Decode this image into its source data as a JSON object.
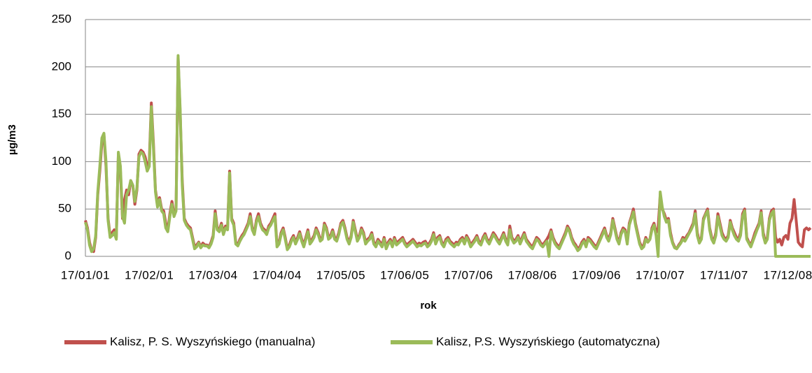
{
  "chart_data": {
    "type": "line",
    "y_label": "µg/m3",
    "x_label": "rok",
    "categories": [
      "17/01/01",
      null,
      null,
      null,
      null,
      null,
      null,
      null,
      null,
      null,
      null,
      null,
      null,
      null,
      null,
      null,
      null,
      null,
      null,
      null,
      null,
      null,
      null,
      null,
      null,
      null,
      null,
      null,
      null,
      null,
      null,
      "17/02/01",
      null,
      null,
      null,
      null,
      null,
      null,
      null,
      null,
      null,
      null,
      null,
      null,
      null,
      null,
      null,
      null,
      null,
      null,
      null,
      null,
      null,
      null,
      null,
      null,
      null,
      null,
      null,
      null,
      null,
      null,
      "17/03/04",
      null,
      null,
      null,
      null,
      null,
      null,
      null,
      null,
      null,
      null,
      null,
      null,
      null,
      null,
      null,
      null,
      null,
      null,
      null,
      null,
      null,
      null,
      null,
      null,
      null,
      null,
      null,
      null,
      null,
      null,
      "17/04/04",
      null,
      null,
      null,
      null,
      null,
      null,
      null,
      null,
      null,
      null,
      null,
      null,
      null,
      null,
      null,
      null,
      null,
      null,
      null,
      null,
      null,
      null,
      null,
      null,
      null,
      null,
      null,
      null,
      null,
      null,
      "17/05/05",
      null,
      null,
      null,
      null,
      null,
      null,
      null,
      null,
      null,
      null,
      null,
      null,
      null,
      null,
      null,
      null,
      null,
      null,
      null,
      null,
      null,
      null,
      null,
      null,
      null,
      null,
      null,
      null,
      null,
      null,
      "17/06/05",
      null,
      null,
      null,
      null,
      null,
      null,
      null,
      null,
      null,
      null,
      null,
      null,
      null,
      null,
      null,
      null,
      null,
      null,
      null,
      null,
      null,
      null,
      null,
      null,
      null,
      null,
      null,
      null,
      null,
      null,
      "17/07/06",
      null,
      null,
      null,
      null,
      null,
      null,
      null,
      null,
      null,
      null,
      null,
      null,
      null,
      null,
      null,
      null,
      null,
      null,
      null,
      null,
      null,
      null,
      null,
      null,
      null,
      null,
      null,
      null,
      null,
      null,
      "17/08/06",
      null,
      null,
      null,
      null,
      null,
      null,
      null,
      null,
      null,
      null,
      null,
      null,
      null,
      null,
      null,
      null,
      null,
      null,
      null,
      null,
      null,
      null,
      null,
      null,
      null,
      null,
      null,
      null,
      null,
      null,
      "17/09/06",
      null,
      null,
      null,
      null,
      null,
      null,
      null,
      null,
      null,
      null,
      null,
      null,
      null,
      null,
      null,
      null,
      null,
      null,
      null,
      null,
      null,
      null,
      null,
      null,
      null,
      null,
      null,
      null,
      null,
      null,
      "17/10/07",
      null,
      null,
      null,
      null,
      null,
      null,
      null,
      null,
      null,
      null,
      null,
      null,
      null,
      null,
      null,
      null,
      null,
      null,
      null,
      null,
      null,
      null,
      null,
      null,
      null,
      null,
      null,
      null,
      null,
      null,
      "17/11/07",
      null,
      null,
      null,
      null,
      null,
      null,
      null,
      null,
      null,
      null,
      null,
      null,
      null,
      null,
      null,
      null,
      null,
      null,
      null,
      null,
      null,
      null,
      null,
      null,
      null,
      null,
      null,
      null,
      null,
      null,
      "17/12/08",
      null,
      null,
      null,
      null,
      null,
      null,
      null,
      null,
      null,
      null,
      null
    ],
    "series": [
      {
        "name": "Kalisz, P. S. Wyszyńskiego (manualna)",
        "color": "#c0504d",
        "values": [
          38,
          30,
          15,
          6,
          5,
          20,
          65,
          90,
          120,
          128,
          95,
          40,
          22,
          25,
          28,
          20,
          108,
          90,
          40,
          60,
          70,
          65,
          80,
          75,
          55,
          70,
          108,
          112,
          110,
          105,
          95,
          100,
          162,
          120,
          70,
          55,
          62,
          50,
          48,
          35,
          28,
          45,
          58,
          45,
          50,
          210,
          150,
          80,
          40,
          35,
          32,
          30,
          20,
          10,
          12,
          15,
          10,
          14,
          12,
          12,
          10,
          15,
          22,
          48,
          30,
          28,
          35,
          25,
          32,
          30,
          90,
          40,
          35,
          15,
          12,
          18,
          22,
          25,
          30,
          35,
          45,
          30,
          25,
          38,
          45,
          35,
          30,
          28,
          25,
          32,
          35,
          40,
          45,
          12,
          15,
          25,
          30,
          20,
          8,
          12,
          18,
          22,
          15,
          20,
          26,
          18,
          12,
          20,
          28,
          15,
          18,
          22,
          30,
          25,
          18,
          20,
          35,
          30,
          20,
          22,
          28,
          20,
          18,
          25,
          35,
          38,
          30,
          20,
          15,
          22,
          38,
          28,
          18,
          22,
          30,
          25,
          15,
          18,
          20,
          25,
          15,
          12,
          18,
          15,
          12,
          20,
          10,
          15,
          18,
          12,
          20,
          14,
          16,
          18,
          20,
          15,
          12,
          14,
          16,
          18,
          15,
          12,
          14,
          13,
          15,
          16,
          12,
          14,
          18,
          25,
          15,
          20,
          22,
          15,
          12,
          18,
          20,
          16,
          14,
          12,
          15,
          14,
          18,
          20,
          15,
          22,
          18,
          12,
          15,
          18,
          22,
          16,
          14,
          20,
          24,
          18,
          15,
          20,
          25,
          22,
          18,
          15,
          20,
          25,
          18,
          14,
          32,
          20,
          16,
          18,
          22,
          15,
          20,
          25,
          18,
          15,
          12,
          10,
          15,
          20,
          18,
          14,
          12,
          15,
          18,
          22,
          28,
          20,
          15,
          12,
          10,
          15,
          20,
          25,
          32,
          28,
          20,
          15,
          12,
          8,
          10,
          15,
          18,
          12,
          20,
          18,
          15,
          12,
          10,
          15,
          20,
          25,
          30,
          22,
          18,
          25,
          40,
          30,
          20,
          15,
          25,
          30,
          28,
          15,
          35,
          42,
          50,
          35,
          25,
          15,
          10,
          12,
          20,
          15,
          18,
          30,
          35,
          25,
          30,
          65,
          50,
          45,
          38,
          40,
          25,
          15,
          10,
          8,
          12,
          15,
          20,
          18,
          22,
          25,
          30,
          35,
          48,
          25,
          15,
          20,
          40,
          45,
          50,
          30,
          20,
          15,
          25,
          45,
          35,
          25,
          20,
          18,
          22,
          38,
          30,
          25,
          20,
          18,
          25,
          45,
          50,
          20,
          15,
          12,
          18,
          25,
          30,
          35,
          48,
          25,
          15,
          20,
          40,
          48,
          50,
          20,
          15,
          18,
          12,
          20,
          22,
          18,
          35,
          40,
          60,
          38,
          15,
          12,
          10,
          28,
          30,
          28,
          30
        ]
      },
      {
        "name": "Kalisz, P.S. Wyszyńskiego (automatyczna)",
        "color": "#9bbb59",
        "values": [
          36,
          28,
          12,
          5,
          8,
          22,
          68,
          95,
          125,
          130,
          100,
          38,
          20,
          22,
          25,
          18,
          110,
          95,
          42,
          35,
          65,
          70,
          80,
          75,
          58,
          72,
          105,
          110,
          108,
          100,
          90,
          95,
          158,
          115,
          68,
          52,
          60,
          48,
          45,
          30,
          26,
          42,
          55,
          42,
          48,
          212,
          155,
          75,
          38,
          33,
          30,
          28,
          18,
          8,
          10,
          14,
          9,
          12,
          11,
          11,
          9,
          13,
          20,
          45,
          28,
          26,
          33,
          23,
          30,
          28,
          88,
          38,
          33,
          13,
          11,
          16,
          20,
          23,
          28,
          33,
          42,
          28,
          23,
          36,
          42,
          33,
          28,
          26,
          23,
          30,
          33,
          38,
          42,
          10,
          13,
          23,
          28,
          18,
          7,
          10,
          16,
          20,
          13,
          18,
          24,
          16,
          10,
          18,
          26,
          13,
          16,
          20,
          28,
          23,
          16,
          18,
          33,
          28,
          18,
          20,
          26,
          18,
          16,
          23,
          33,
          36,
          28,
          18,
          13,
          20,
          36,
          26,
          16,
          20,
          28,
          23,
          13,
          16,
          18,
          23,
          13,
          10,
          16,
          13,
          10,
          18,
          8,
          13,
          16,
          10,
          18,
          12,
          14,
          16,
          18,
          13,
          10,
          12,
          14,
          16,
          13,
          10,
          12,
          11,
          13,
          14,
          10,
          12,
          16,
          23,
          13,
          18,
          20,
          13,
          10,
          16,
          18,
          14,
          12,
          10,
          13,
          12,
          16,
          18,
          13,
          20,
          16,
          10,
          13,
          16,
          20,
          14,
          12,
          18,
          22,
          16,
          13,
          18,
          23,
          20,
          16,
          13,
          18,
          23,
          16,
          12,
          28,
          18,
          14,
          16,
          20,
          13,
          18,
          23,
          16,
          13,
          10,
          8,
          13,
          18,
          16,
          12,
          10,
          13,
          16,
          0,
          26,
          18,
          13,
          10,
          8,
          13,
          18,
          23,
          30,
          26,
          18,
          13,
          10,
          6,
          8,
          13,
          16,
          10,
          18,
          16,
          13,
          10,
          8,
          13,
          18,
          23,
          28,
          20,
          16,
          23,
          38,
          28,
          18,
          13,
          23,
          28,
          26,
          13,
          33,
          40,
          47,
          33,
          23,
          13,
          8,
          10,
          18,
          15,
          18,
          28,
          33,
          22,
          0,
          68,
          52,
          42,
          36,
          38,
          22,
          14,
          9,
          8,
          11,
          14,
          18,
          16,
          20,
          24,
          28,
          33,
          45,
          22,
          14,
          18,
          38,
          44,
          48,
          28,
          18,
          14,
          22,
          42,
          32,
          22,
          18,
          16,
          20,
          36,
          28,
          22,
          18,
          16,
          22,
          42,
          48,
          18,
          14,
          10,
          16,
          22,
          28,
          33,
          46,
          22,
          14,
          18,
          38,
          45,
          48,
          0,
          0,
          0,
          0,
          0,
          0,
          0,
          0,
          0,
          0,
          0,
          0,
          0,
          0,
          0,
          0,
          0,
          0
        ]
      }
    ],
    "ylim": [
      0,
      250
    ],
    "yticks": [
      0,
      50,
      100,
      150,
      200,
      250
    ],
    "grid": true
  }
}
